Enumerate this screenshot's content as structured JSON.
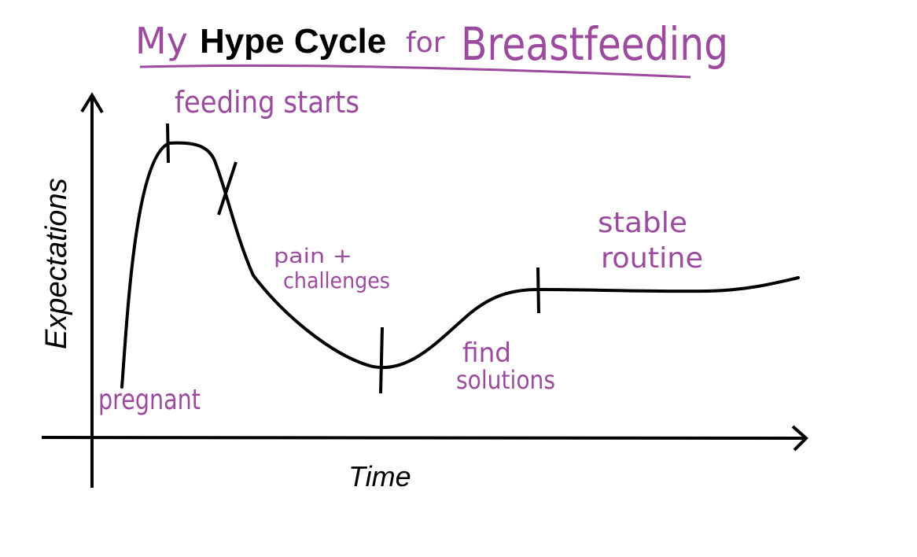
{
  "title": {
    "prefix": "My",
    "main": "Hype Cycle",
    "suffix_for": "for",
    "suffix_subject": "Breastfeeding"
  },
  "axes": {
    "y_label": "Expectations",
    "x_label": "Time"
  },
  "stages": {
    "start": "pregnant",
    "peak": "feeding starts",
    "decline_line1": "pain +",
    "decline_line2": "challenges",
    "recovery_line1": "find",
    "recovery_line2": "solutions",
    "plateau_line1": "stable",
    "plateau_line2": "routine"
  },
  "colors": {
    "ink": "#000000",
    "handwriting": "#9b4a9e"
  }
}
